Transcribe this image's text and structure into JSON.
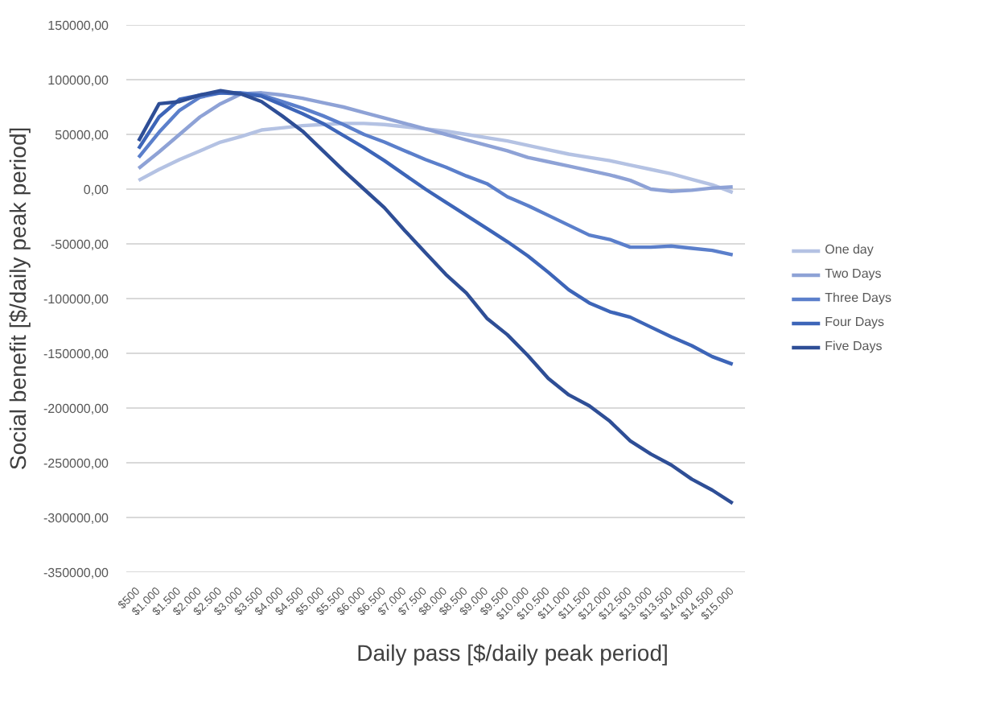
{
  "chart_data": {
    "type": "line",
    "xlabel": "Daily pass [$/daily peak period]",
    "ylabel": "Social benefit [$/daily peak period]",
    "categories": [
      "$500",
      "$1.000",
      "$1.500",
      "$2.000",
      "$2.500",
      "$3.000",
      "$3.500",
      "$4.000",
      "$4.500",
      "$5.000",
      "$5.500",
      "$6.000",
      "$6.500",
      "$7.000",
      "$7.500",
      "$8.000",
      "$8.500",
      "$9.000",
      "$9.500",
      "$10.000",
      "$10.500",
      "$11.000",
      "$11.500",
      "$12.000",
      "$12.500",
      "$13.000",
      "$13.500",
      "$14.000",
      "$14.500",
      "$15.000"
    ],
    "series": [
      {
        "name": "One day",
        "color": "#b4c2e3",
        "values": [
          8000,
          18000,
          27000,
          35000,
          43000,
          48000,
          54000,
          56000,
          58000,
          59000,
          60000,
          60000,
          59000,
          57000,
          55000,
          53000,
          50000,
          47000,
          44000,
          40000,
          36000,
          32000,
          29000,
          26000,
          22000,
          18000,
          14000,
          9000,
          4000,
          -3000
        ]
      },
      {
        "name": "Two Days",
        "color": "#8ea2d6",
        "values": [
          19000,
          34000,
          50000,
          66000,
          78000,
          87000,
          88000,
          86000,
          83000,
          79000,
          75000,
          70000,
          65000,
          60000,
          55000,
          50000,
          45000,
          40000,
          35000,
          29000,
          25000,
          21000,
          17000,
          13000,
          8000,
          0,
          -2000,
          -1000,
          1000,
          2000
        ]
      },
      {
        "name": "Three Days",
        "color": "#5b7fcb",
        "values": [
          29000,
          52000,
          72000,
          84000,
          88000,
          88000,
          86000,
          80000,
          74000,
          67000,
          59000,
          50000,
          43000,
          35000,
          27000,
          20000,
          12000,
          5000,
          -7000,
          -15000,
          -24000,
          -33000,
          -42000,
          -46000,
          -53000,
          -53000,
          -52000,
          -54000,
          -56000,
          -60000
        ]
      },
      {
        "name": "Four Days",
        "color": "#3d65b8",
        "values": [
          37000,
          66000,
          82000,
          86000,
          88000,
          87000,
          85000,
          77000,
          69000,
          60000,
          49000,
          38000,
          26000,
          13000,
          0,
          -12000,
          -24000,
          -36000,
          -48000,
          -61000,
          -76000,
          -92000,
          -104000,
          -112000,
          -117000,
          -126000,
          -135000,
          -143000,
          -153000,
          -160000
        ]
      },
      {
        "name": "Five Days",
        "color": "#2e4e96",
        "values": [
          44000,
          78000,
          80000,
          86000,
          90000,
          87000,
          80000,
          67000,
          53000,
          35000,
          17000,
          0,
          -17000,
          -38000,
          -58000,
          -78000,
          -95000,
          -118000,
          -133000,
          -152000,
          -173000,
          -188000,
          -198000,
          -212000,
          -230000,
          -242000,
          -252000,
          -265000,
          -275000,
          -287000
        ]
      }
    ],
    "ylim": [
      -350000,
      150000
    ],
    "yticks": [
      {
        "value": -350000,
        "label": "-350000,00"
      },
      {
        "value": -300000,
        "label": "-300000,00"
      },
      {
        "value": -250000,
        "label": "-250000,00"
      },
      {
        "value": -200000,
        "label": "-200000,00"
      },
      {
        "value": -150000,
        "label": "-150000,00"
      },
      {
        "value": -100000,
        "label": "-100000,00"
      },
      {
        "value": -50000,
        "label": "-50000,00"
      },
      {
        "value": 0,
        "label": "0,00"
      },
      {
        "value": 50000,
        "label": "50000,00"
      },
      {
        "value": 100000,
        "label": "100000,00"
      },
      {
        "value": 150000,
        "label": "150000,00"
      }
    ],
    "grid": "y",
    "legend": "right",
    "marker": "none",
    "line_style": "solid"
  }
}
